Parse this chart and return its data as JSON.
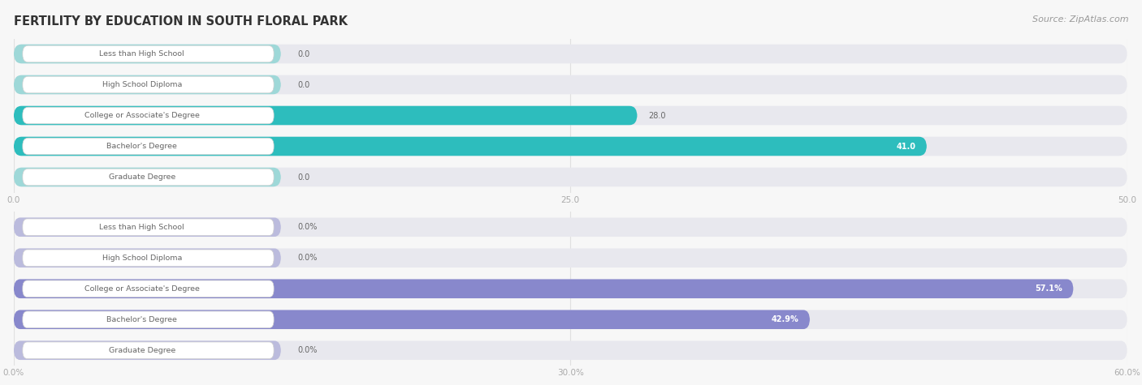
{
  "title": "FERTILITY BY EDUCATION IN SOUTH FLORAL PARK",
  "source": "Source: ZipAtlas.com",
  "top_chart": {
    "categories": [
      "Less than High School",
      "High School Diploma",
      "College or Associate's Degree",
      "Bachelor's Degree",
      "Graduate Degree"
    ],
    "values": [
      0.0,
      0.0,
      28.0,
      41.0,
      0.0
    ],
    "xlim": [
      0,
      50
    ],
    "xticks": [
      0.0,
      25.0,
      50.0
    ],
    "bar_color_full": "#2dbdbd",
    "bar_color_empty": "#9ed8d8",
    "value_labels": [
      "0.0",
      "0.0",
      "28.0",
      "41.0",
      "0.0"
    ],
    "value_inside": [
      false,
      false,
      false,
      true,
      false
    ]
  },
  "bottom_chart": {
    "categories": [
      "Less than High School",
      "High School Diploma",
      "College or Associate's Degree",
      "Bachelor's Degree",
      "Graduate Degree"
    ],
    "values": [
      0.0,
      0.0,
      57.1,
      42.9,
      0.0
    ],
    "xlim": [
      0,
      60
    ],
    "xticks": [
      0.0,
      30.0,
      60.0
    ],
    "bar_color_full": "#8888cc",
    "bar_color_empty": "#bbbbdd",
    "value_labels": [
      "0.0%",
      "0.0%",
      "57.1%",
      "42.9%",
      "0.0%"
    ],
    "value_inside": [
      false,
      false,
      true,
      true,
      false
    ]
  },
  "bg_color": "#f7f7f7",
  "bar_bg_color": "#e8e8ee",
  "label_box_color": "#ffffff",
  "label_text_color": "#666666",
  "title_color": "#333333",
  "tick_color": "#aaaaaa",
  "grid_color": "#e0e0e0"
}
